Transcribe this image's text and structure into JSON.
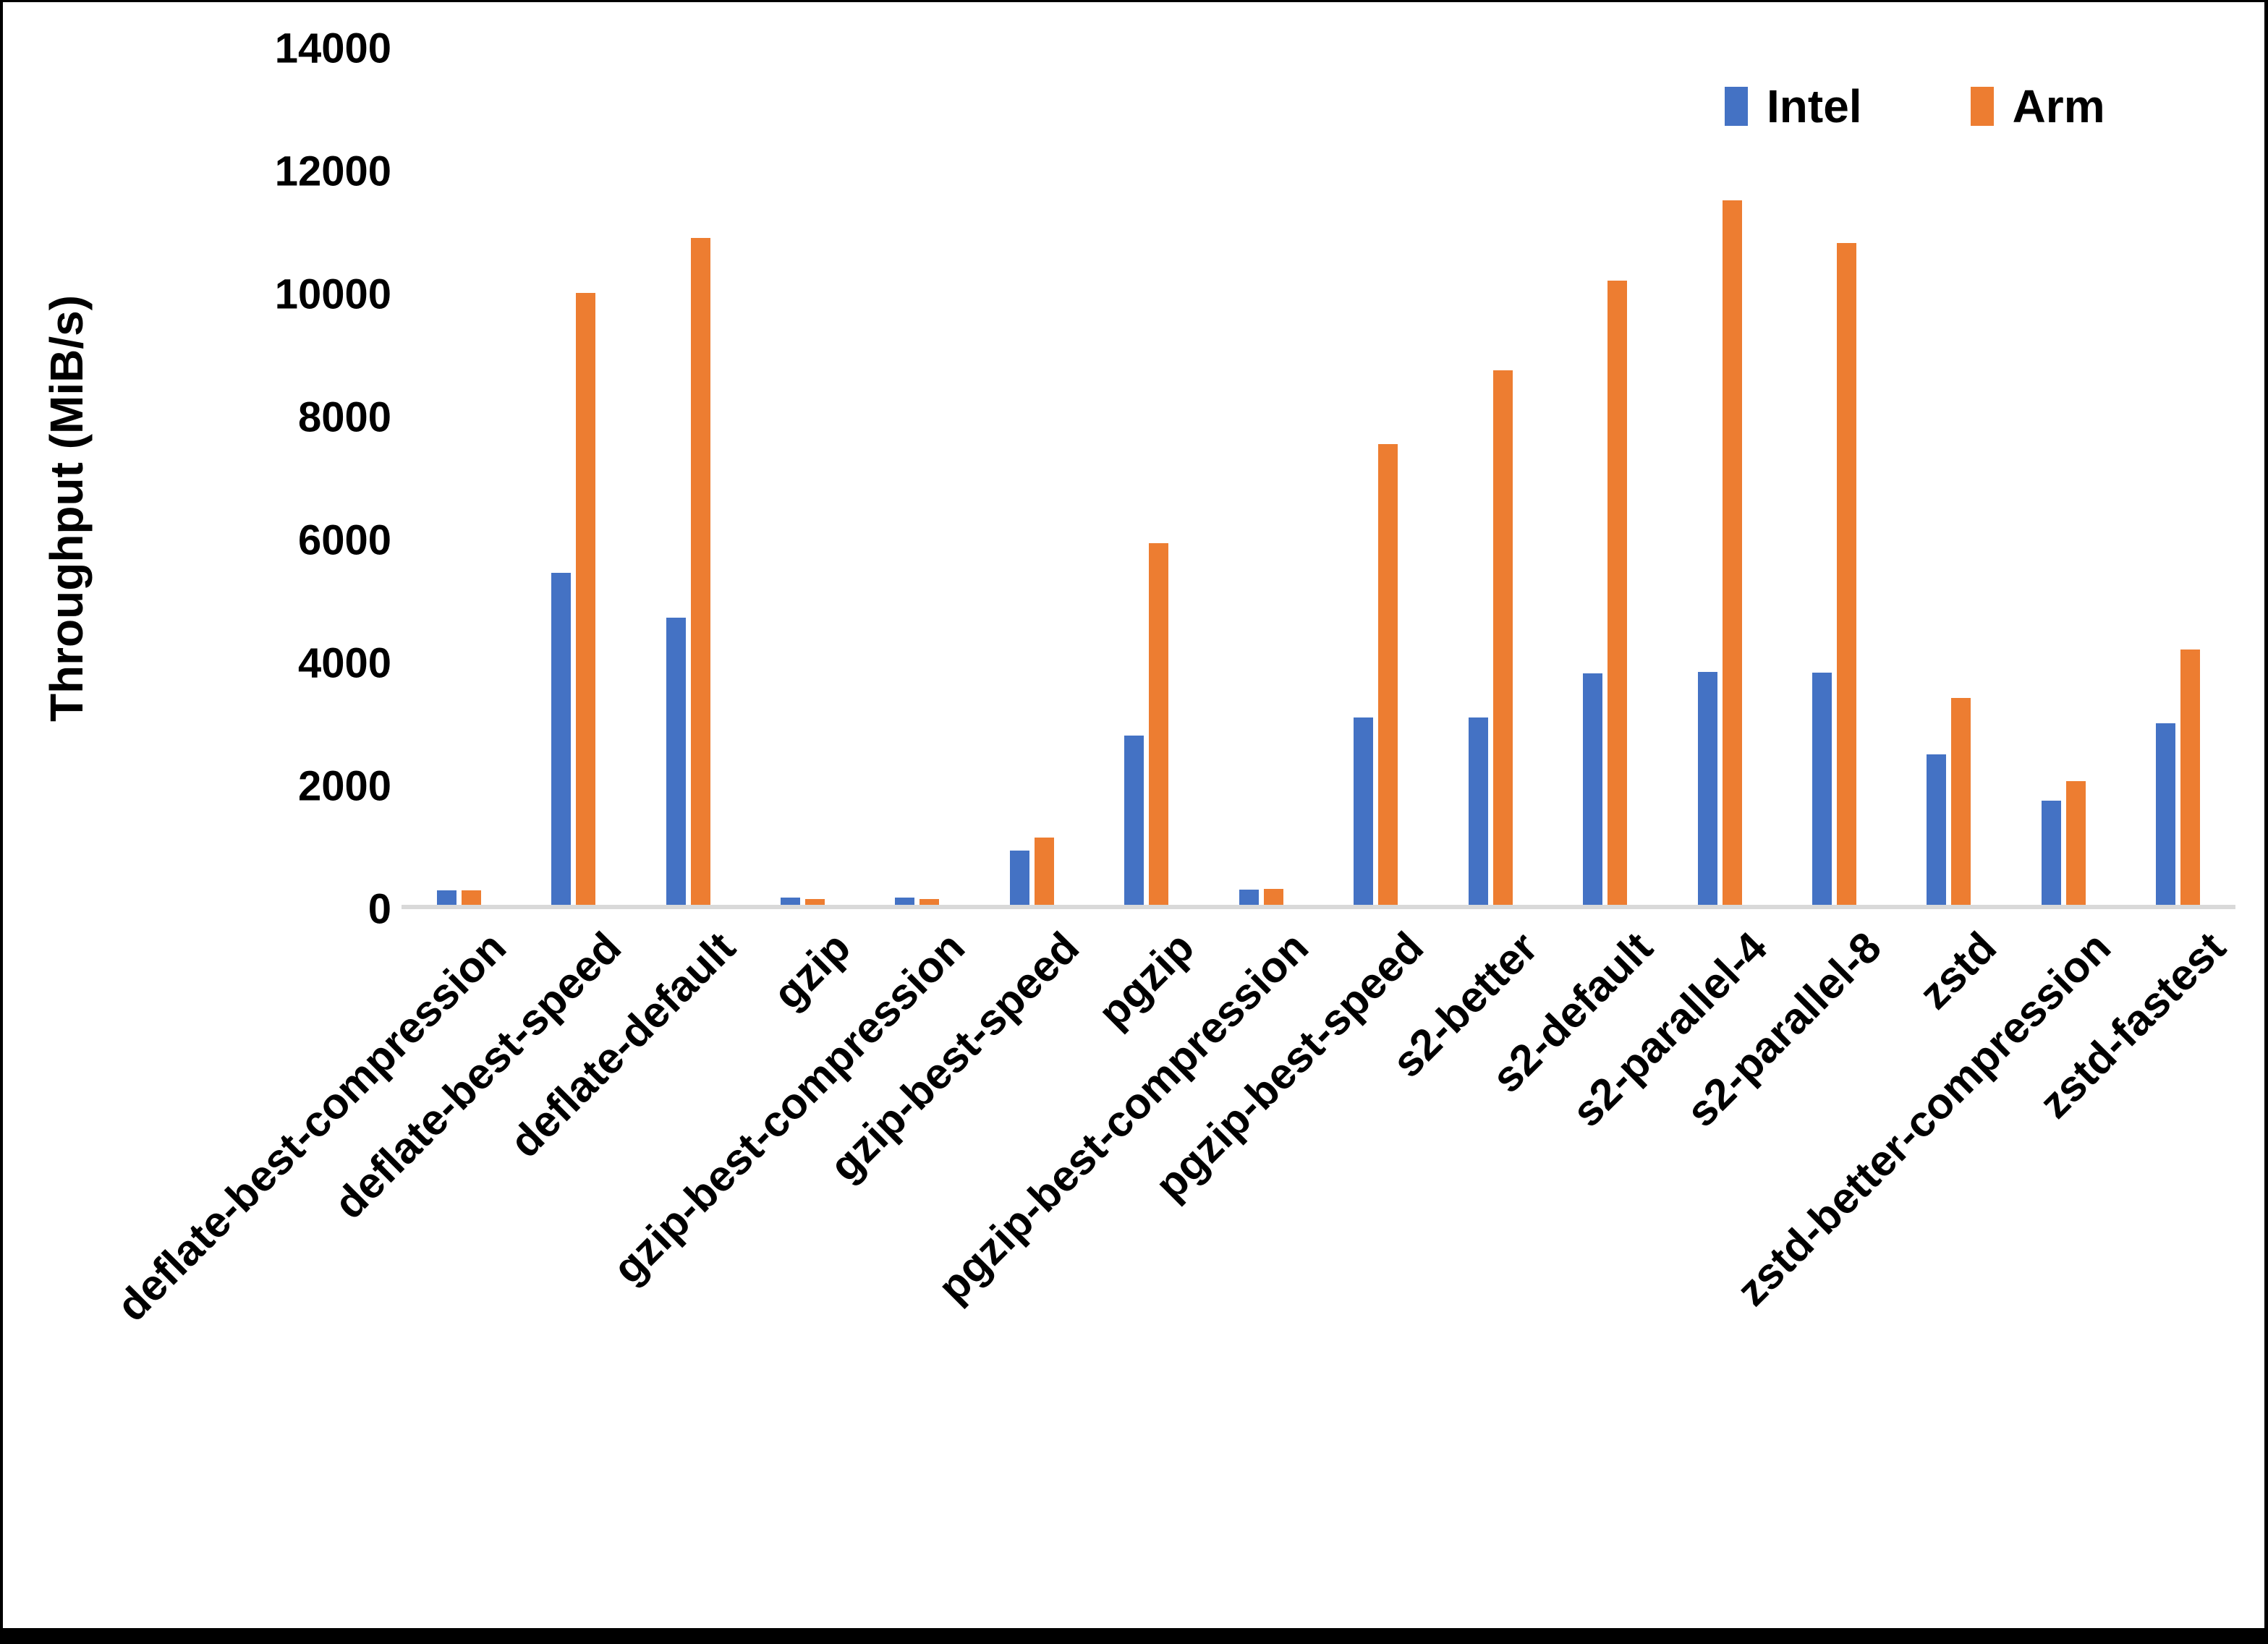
{
  "frame": {
    "background": "#ffffff",
    "border_color": "#000000",
    "baseline_color": "#d9d9d9"
  },
  "legend": {
    "position": "top-right",
    "items": [
      {
        "label": "Intel",
        "color": "#4472C4"
      },
      {
        "label": "Arm",
        "color": "#ED7D31"
      }
    ]
  },
  "chart_data": {
    "type": "bar",
    "title": "",
    "xlabel": "",
    "ylabel": "Throughput (MiB/s)",
    "ylim": [
      0,
      14000
    ],
    "ytick_step": 2000,
    "yticks": [
      0,
      2000,
      4000,
      6000,
      8000,
      10000,
      12000,
      14000
    ],
    "grid": false,
    "legend_position": "top-right",
    "categories": [
      "deflate-best-compression",
      "deflate-best-speed",
      "deflate-default",
      "gzip",
      "gzip-best-compression",
      "gzip-best-speed",
      "pgzip",
      "pgzip-best-compression",
      "pgzip-best-speed",
      "s2-better",
      "s2-default",
      "s2-parallel-4",
      "s2-parallel-8",
      "zstd",
      "zstd-better-compression",
      "zstd-fastest"
    ],
    "series": [
      {
        "name": "Intel",
        "color": "#4472C4",
        "values": [
          230,
          5400,
          4670,
          120,
          120,
          880,
          2750,
          250,
          3050,
          3050,
          3760,
          3790,
          3780,
          2450,
          1700,
          2950
        ]
      },
      {
        "name": "Arm",
        "color": "#ED7D31",
        "values": [
          240,
          9950,
          10850,
          100,
          100,
          1100,
          5880,
          260,
          7500,
          8700,
          10150,
          11460,
          10760,
          3370,
          2010,
          4150
        ]
      }
    ]
  }
}
